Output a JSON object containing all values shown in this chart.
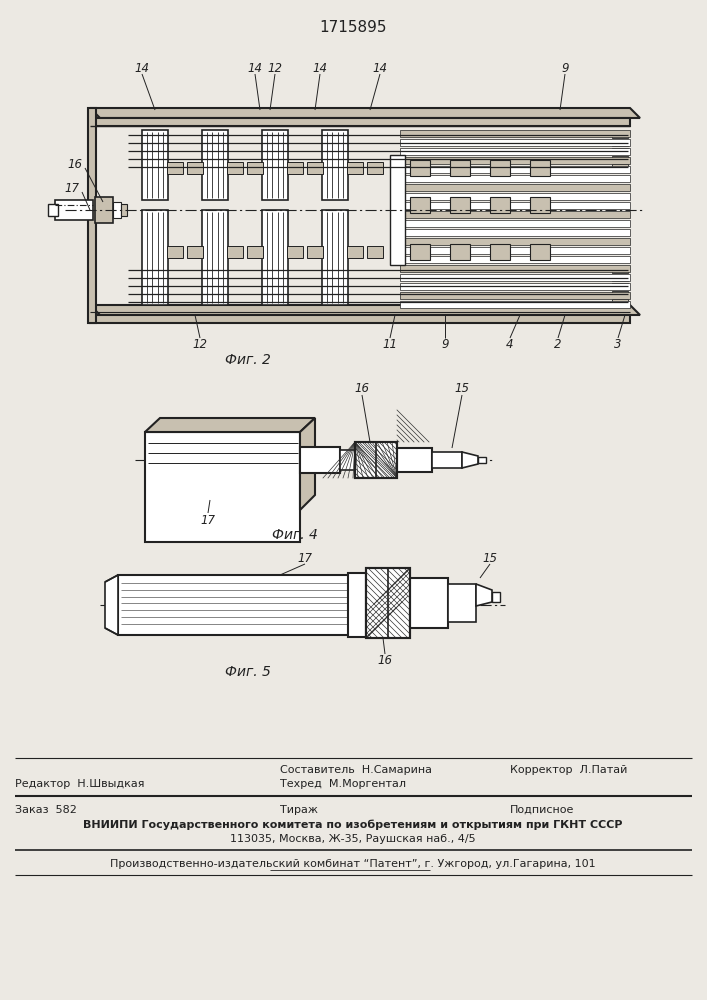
{
  "patent_number": "1715895",
  "fig2_caption": "Фиг. 2",
  "fig4_caption": "Фиг. 4",
  "fig5_caption": "Фиг. 5",
  "footer_redaktor": "Редактор  Н.Швыдкая",
  "footer_sostavitel": "Составитель  Н.Самарина",
  "footer_tehred": "Техред  М.Моргентал",
  "footer_korrektor": "Корректор  Л.Патай",
  "footer_zakaz": "Заказ  582",
  "footer_tirazh": "Тираж",
  "footer_podpisnoe": "Подписное",
  "footer_vniipи": "ВНИИПИ Государственного комитета по изобретениям и открытиям при ГКНТ СССР",
  "footer_address": "113035, Москва, Ж-35, Раушская наб., 4/5",
  "footer_proizv": "Производственно-издательский комбинат “Патент”, г. Ужгород, ул.Гагарина, 101",
  "bg_color": "#ece9e3",
  "line_color": "#222222",
  "gray_fill": "#999080",
  "light_gray": "#c8c0b0",
  "hatch_color": "#333333"
}
